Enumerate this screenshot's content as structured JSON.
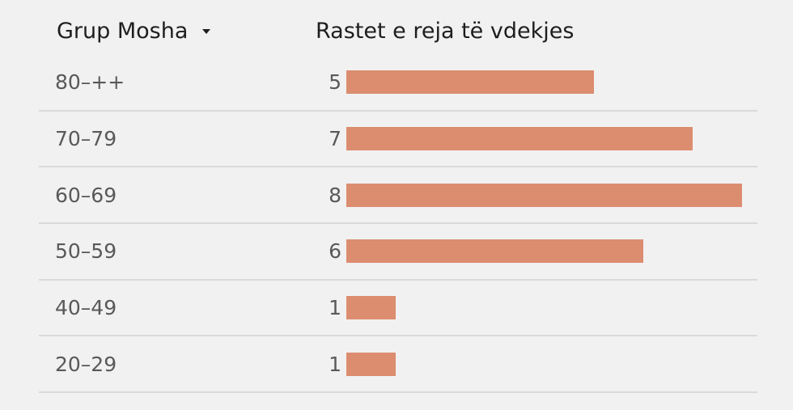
{
  "header": {
    "age_group_label": "Grup Mosha",
    "new_deaths_label": "Rastet e reja të vdekjes"
  },
  "colors": {
    "bar": "#dc8d70",
    "background": "#f1f1f1"
  },
  "chart_data": {
    "type": "bar",
    "orientation": "horizontal",
    "categories": [
      "80–++",
      "70–79",
      "60–69",
      "50–59",
      "40–49",
      "20–29"
    ],
    "values": [
      5,
      7,
      8,
      6,
      1,
      1
    ],
    "xlim": [
      0,
      8
    ],
    "grid": false,
    "sorted_by": "Grup Mosha"
  }
}
